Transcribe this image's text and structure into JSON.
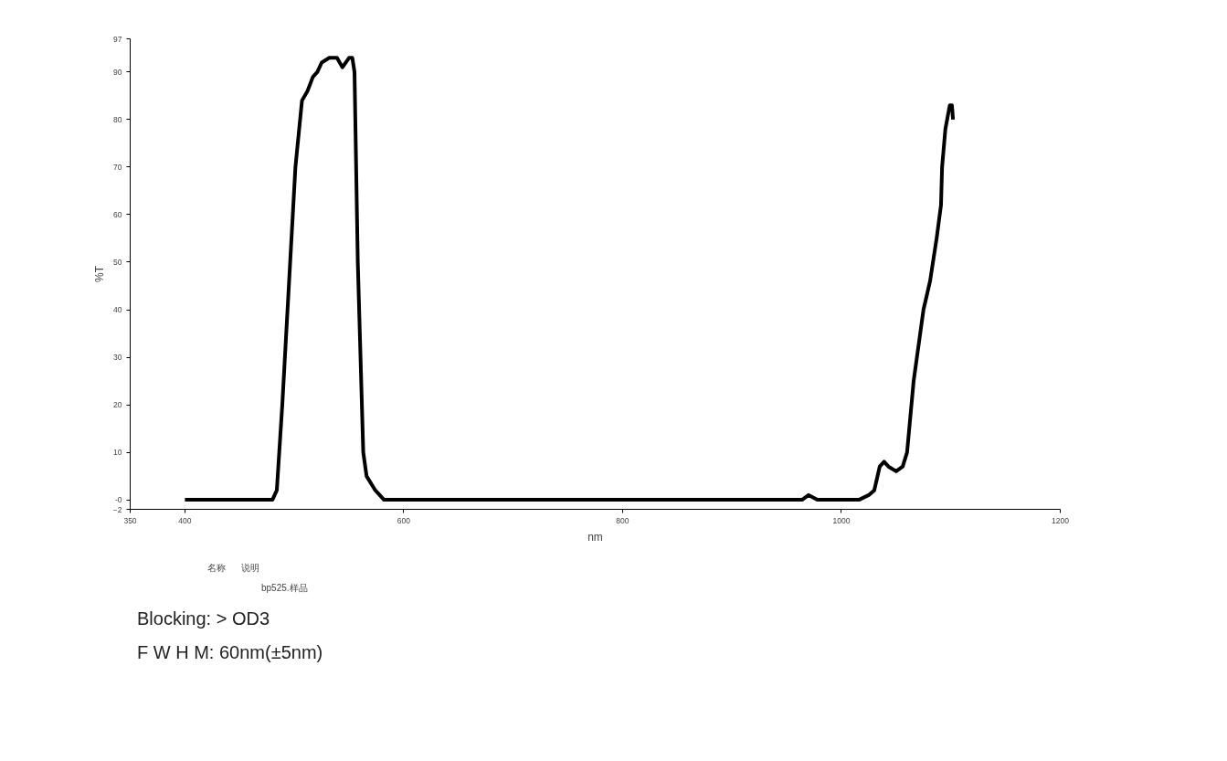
{
  "chart_data": {
    "type": "line",
    "xlabel": "nm",
    "ylabel": "%T",
    "xlim": [
      350,
      1200
    ],
    "ylim": [
      -2,
      97
    ],
    "xticks": [
      350,
      400,
      600,
      800,
      1000,
      1200
    ],
    "yticks": [
      -2,
      {
        "value": 0,
        "label": "-0"
      },
      10,
      20,
      30,
      40,
      50,
      60,
      70,
      80,
      90,
      97
    ],
    "grid": false,
    "legend": "bottom left",
    "legend_title": "名称      说明",
    "line_style": "solid",
    "marker": "none",
    "series": [
      {
        "name": "bp525.样品",
        "color": "#000000",
        "x": [
          400,
          473,
          480,
          484,
          489,
          501,
          507,
          512,
          517,
          521,
          525,
          532,
          539,
          544,
          550,
          553,
          555,
          558,
          563,
          566,
          574,
          582,
          590,
          599,
          700,
          800,
          964,
          970,
          978,
          1016,
          1025,
          1030,
          1035,
          1039,
          1043,
          1050,
          1056,
          1060,
          1066,
          1075,
          1081,
          1087,
          1091,
          1092,
          1095,
          1099,
          1101,
          1102
        ],
        "values": [
          0,
          0,
          0,
          2,
          20,
          70,
          84,
          86,
          89,
          90,
          92,
          93,
          93,
          91,
          93,
          93,
          90,
          50,
          10,
          5,
          2,
          0,
          0,
          0,
          0,
          0,
          0,
          1,
          0,
          0,
          1,
          2,
          7,
          8,
          7,
          6,
          7,
          10,
          25,
          40,
          46,
          55,
          62,
          70,
          78,
          83,
          83,
          80
        ]
      }
    ],
    "annotations": [
      "Blocking:  > OD3",
      "F W H M:  60nm(±5nm)"
    ]
  }
}
